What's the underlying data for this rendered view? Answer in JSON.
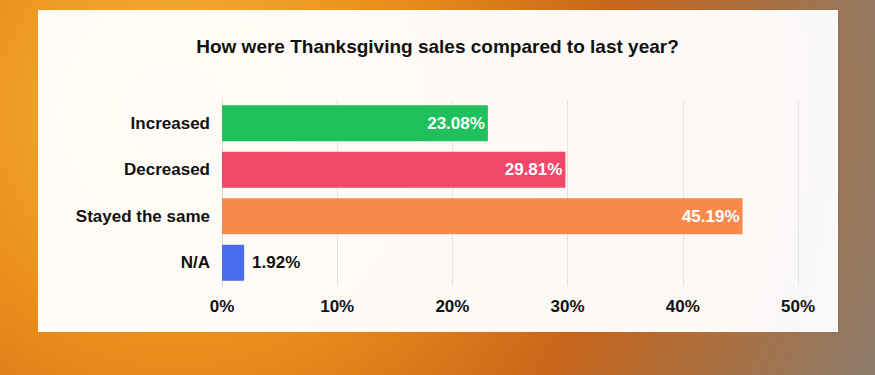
{
  "chart_data": {
    "type": "bar",
    "title": "How were Thanksgiving sales compared to last year?",
    "orientation": "horizontal",
    "categories": [
      "Increased",
      "Decreased",
      "Stayed the same",
      "N/A"
    ],
    "values": [
      23.08,
      29.81,
      45.19,
      1.92
    ],
    "value_labels": [
      "23.08%",
      "29.81%",
      "45.19%",
      "1.92%"
    ],
    "colors": [
      "#1ec15c",
      "#f2486a",
      "#fa8a4c",
      "#4a6df0"
    ],
    "xlim": [
      0,
      50
    ],
    "xticks": [
      {
        "value": 0,
        "label": "0%"
      },
      {
        "value": 10,
        "label": "10%"
      },
      {
        "value": 20,
        "label": "20%"
      },
      {
        "value": 30,
        "label": "30%"
      },
      {
        "value": 40,
        "label": "40%"
      },
      {
        "value": 50,
        "label": "50%"
      }
    ],
    "grid": true,
    "data_labels": true
  }
}
